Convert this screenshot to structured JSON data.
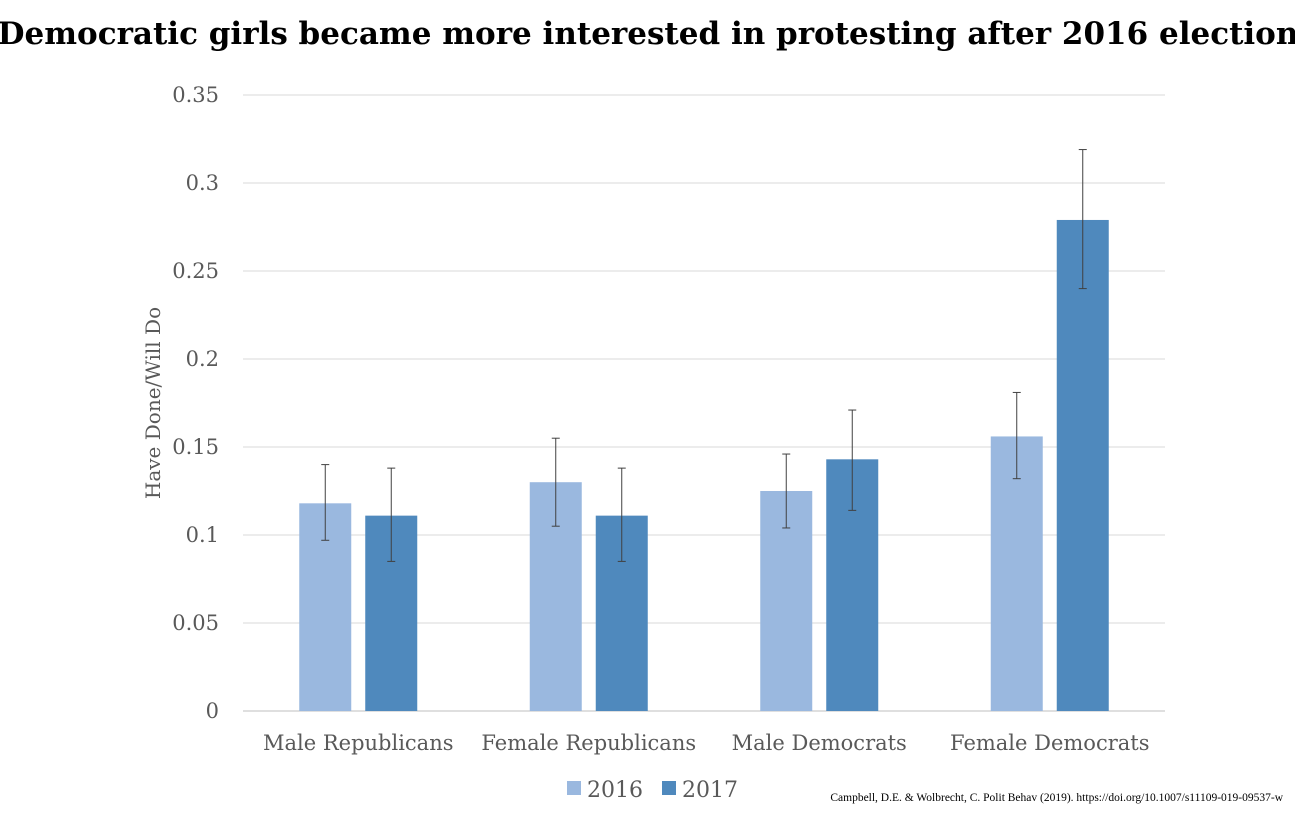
{
  "chart_data": {
    "type": "bar",
    "title": "Democratic girls became more interested in protesting after 2016 election",
    "xlabel": "",
    "ylabel": "Have Done/Will Do",
    "ylim": [
      0,
      0.35
    ],
    "yticks": [
      "0",
      "0.05",
      "0.1",
      "0.15",
      "0.2",
      "0.25",
      "0.3",
      "0.35"
    ],
    "ytick_values": [
      0,
      0.05,
      0.1,
      0.15,
      0.2,
      0.25,
      0.3,
      0.35
    ],
    "grid": true,
    "legend_position": "bottom",
    "categories": [
      "Male Republicans",
      "Female Republicans",
      "Male Democrats",
      "Female Democrats"
    ],
    "series": [
      {
        "name": "2016",
        "color": "#9ab8df",
        "values": [
          0.118,
          0.13,
          0.125,
          0.156
        ],
        "error_low": [
          0.097,
          0.105,
          0.104,
          0.132
        ],
        "error_high": [
          0.14,
          0.155,
          0.146,
          0.181
        ]
      },
      {
        "name": "2017",
        "color": "#4f89bd",
        "values": [
          0.111,
          0.111,
          0.143,
          0.279
        ],
        "error_low": [
          0.085,
          0.085,
          0.114,
          0.24
        ],
        "error_high": [
          0.138,
          0.138,
          0.171,
          0.319
        ]
      }
    ]
  },
  "citation": "Campbell, D.E. & Wolbrecht, C. Polit Behav (2019). https://doi.org/10.1007/s11109-019-09537-w",
  "colors": {
    "grid": "#d9d9d9",
    "axis": "#bfbfbf",
    "error_bar": "#404040"
  }
}
